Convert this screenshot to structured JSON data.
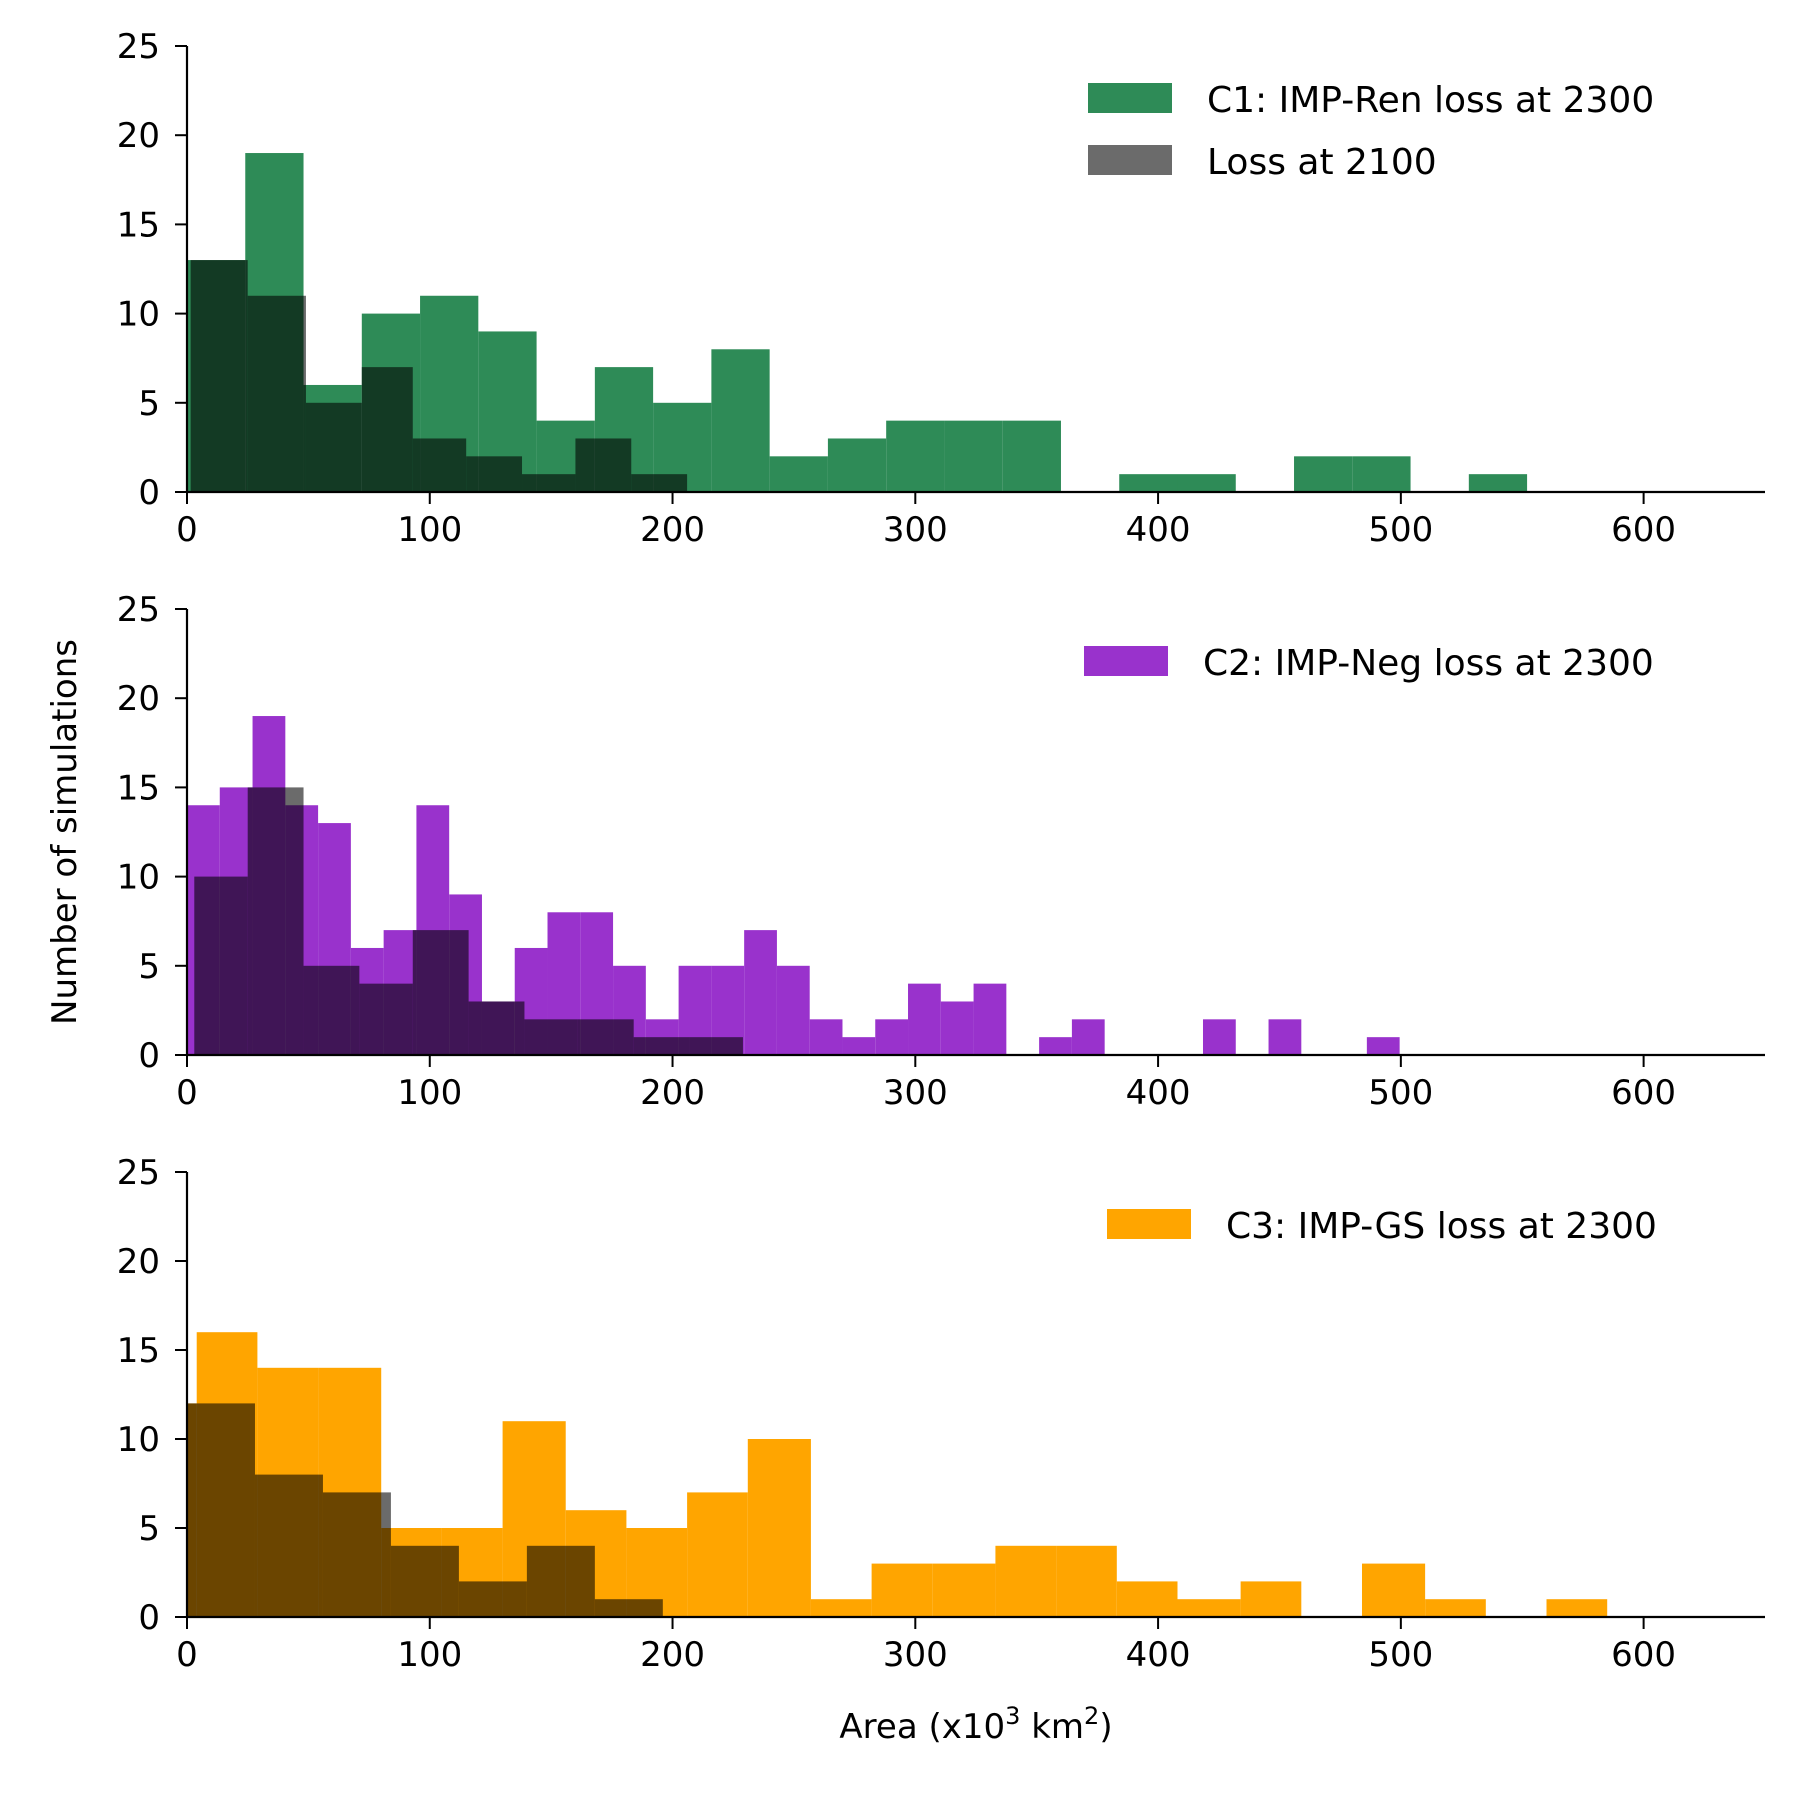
{
  "figure": {
    "ylabel": "Number of simulations",
    "xlabel": {
      "pre": "Area (x10",
      "sup1": "3",
      "mid": " km",
      "sup2": "2",
      "post": ")"
    }
  },
  "chart_data": [
    {
      "type": "bar",
      "xlim": [
        0,
        650
      ],
      "ylim": [
        0,
        25
      ],
      "xticks": [
        0,
        100,
        200,
        300,
        400,
        500,
        600
      ],
      "yticks": [
        0,
        5,
        10,
        15,
        20,
        25
      ],
      "legend_position": "top-right",
      "series": [
        {
          "name": "C1: IMP-Ren loss at 2300",
          "color": "#2e8b57",
          "alpha": 1,
          "bins": [
            [
              0,
              24,
              13
            ],
            [
              24,
              48,
              19
            ],
            [
              48,
              72,
              6
            ],
            [
              72,
              96,
              10
            ],
            [
              96,
              120,
              11
            ],
            [
              120,
              144,
              9
            ],
            [
              144,
              168,
              4
            ],
            [
              168,
              192,
              7
            ],
            [
              192,
              216,
              5
            ],
            [
              216,
              240,
              8
            ],
            [
              240,
              264,
              2
            ],
            [
              264,
              288,
              3
            ],
            [
              288,
              312,
              4
            ],
            [
              312,
              336,
              4
            ],
            [
              336,
              360,
              4
            ],
            [
              360,
              384,
              0
            ],
            [
              384,
              408,
              1
            ],
            [
              408,
              432,
              1
            ],
            [
              432,
              456,
              0
            ],
            [
              456,
              480,
              2
            ],
            [
              480,
              504,
              2
            ],
            [
              504,
              528,
              0
            ],
            [
              528,
              552,
              1
            ]
          ]
        },
        {
          "name": "Loss at 2100",
          "color": "#000000",
          "alpha": 0.58,
          "bins": [
            [
              1.5,
              25,
              13
            ],
            [
              25,
              49,
              11
            ],
            [
              49,
              72,
              5
            ],
            [
              72,
              93,
              7
            ],
            [
              93,
              115,
              3
            ],
            [
              115,
              138,
              2
            ],
            [
              138,
              160,
              1
            ],
            [
              160,
              183,
              3
            ],
            [
              183,
              206,
              1
            ]
          ]
        }
      ]
    },
    {
      "type": "bar",
      "xlim": [
        0,
        650
      ],
      "ylim": [
        0,
        25
      ],
      "xticks": [
        0,
        100,
        200,
        300,
        400,
        500,
        600
      ],
      "yticks": [
        0,
        5,
        10,
        15,
        20,
        25
      ],
      "legend_position": "top-right",
      "series": [
        {
          "name": "C2: IMP-Neg loss at 2300",
          "color": "#9932cc",
          "alpha": 1,
          "bins": [
            [
              0,
              13.5,
              14
            ],
            [
              13.5,
              27,
              15
            ],
            [
              27,
              40.5,
              19
            ],
            [
              40.5,
              54,
              14
            ],
            [
              54,
              67.5,
              13
            ],
            [
              67.5,
              81,
              6
            ],
            [
              81,
              94.5,
              7
            ],
            [
              94.5,
              108,
              14
            ],
            [
              108,
              121.5,
              9
            ],
            [
              121.5,
              135,
              3
            ],
            [
              135,
              148.5,
              6
            ],
            [
              148.5,
              162,
              8
            ],
            [
              162,
              175.5,
              8
            ],
            [
              175.5,
              189,
              5
            ],
            [
              189,
              202.5,
              2
            ],
            [
              202.5,
              216,
              5
            ],
            [
              216,
              229.5,
              5
            ],
            [
              229.5,
              243,
              7
            ],
            [
              243,
              256.5,
              5
            ],
            [
              256.5,
              270,
              2
            ],
            [
              270,
              283.5,
              1
            ],
            [
              283.5,
              297,
              2
            ],
            [
              297,
              310.5,
              4
            ],
            [
              310.5,
              324,
              3
            ],
            [
              324,
              337.5,
              4
            ],
            [
              337.5,
              351,
              0
            ],
            [
              351,
              364.5,
              1
            ],
            [
              364.5,
              378,
              2
            ],
            [
              378,
              418.5,
              0
            ],
            [
              418.5,
              432,
              2
            ],
            [
              432,
              445.5,
              0
            ],
            [
              445.5,
              459,
              2
            ],
            [
              459,
              486,
              0
            ],
            [
              486,
              499.5,
              1
            ]
          ]
        },
        {
          "name": "",
          "color": "#000000",
          "alpha": 0.58,
          "bins": [
            [
              3,
              25,
              10
            ],
            [
              25,
              48,
              15
            ],
            [
              48,
              71,
              5
            ],
            [
              71,
              93,
              4
            ],
            [
              93,
              116,
              7
            ],
            [
              116,
              139,
              3
            ],
            [
              139,
              161,
              2
            ],
            [
              161,
              184,
              2
            ],
            [
              184,
              207,
              1
            ],
            [
              207,
              229,
              1
            ]
          ]
        }
      ]
    },
    {
      "type": "bar",
      "xlim": [
        0,
        650
      ],
      "ylim": [
        0,
        25
      ],
      "xticks": [
        0,
        100,
        200,
        300,
        400,
        500,
        600
      ],
      "yticks": [
        0,
        5,
        10,
        15,
        20,
        25
      ],
      "legend_position": "top-right",
      "series": [
        {
          "name": "C3: IMP-GS loss at 2300",
          "color": "#ffa500",
          "alpha": 1,
          "bins": [
            [
              0,
              4,
              12
            ],
            [
              4,
              29,
              16
            ],
            [
              29,
              54,
              14
            ],
            [
              54,
              80,
              14
            ],
            [
              80,
              105,
              5
            ],
            [
              105,
              130,
              5
            ],
            [
              130,
              156,
              11
            ],
            [
              156,
              181,
              6
            ],
            [
              181,
              206,
              5
            ],
            [
              206,
              231,
              7
            ],
            [
              231,
              257,
              10
            ],
            [
              257,
              282,
              1
            ],
            [
              282,
              307,
              3
            ],
            [
              307,
              333,
              3
            ],
            [
              333,
              358,
              4
            ],
            [
              358,
              383,
              4
            ],
            [
              383,
              408,
              2
            ],
            [
              408,
              434,
              1
            ],
            [
              434,
              459,
              2
            ],
            [
              459,
              484,
              0
            ],
            [
              484,
              510,
              3
            ],
            [
              510,
              535,
              1
            ],
            [
              535,
              560,
              0
            ],
            [
              560,
              585,
              1
            ]
          ]
        },
        {
          "name": "",
          "color": "#000000",
          "alpha": 0.58,
          "bins": [
            [
              0,
              3.5,
              12
            ],
            [
              3.5,
              28,
              12
            ],
            [
              28,
              56,
              8
            ],
            [
              56,
              84,
              7
            ],
            [
              84,
              112,
              4
            ],
            [
              112,
              140,
              2
            ],
            [
              140,
              168,
              4
            ],
            [
              168,
              196,
              1
            ]
          ]
        }
      ]
    }
  ]
}
